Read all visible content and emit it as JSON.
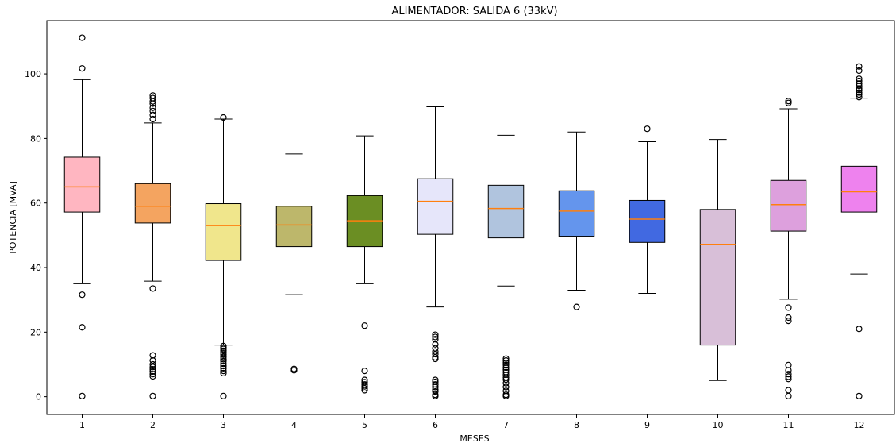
{
  "chart_data": {
    "type": "box",
    "title": "ALIMENTADOR: SALIDA 6 (33kV)",
    "xlabel": "MESES",
    "ylabel": "POTENCIA [MVA]",
    "ylim": [
      -5.5,
      116.5
    ],
    "yticks": [
      0,
      20,
      40,
      60,
      80,
      100
    ],
    "grid": false,
    "categories": [
      "1",
      "2",
      "3",
      "4",
      "5",
      "6",
      "7",
      "8",
      "9",
      "10",
      "11",
      "12"
    ],
    "boxes": [
      {
        "category": "1",
        "whisker_low": 35,
        "q1": 57.2,
        "median": 65,
        "q3": 74.2,
        "whisker_high": 98.2,
        "fliers": [
          111.2,
          101.7,
          31.6,
          21.5,
          0.2
        ],
        "color": "#ffb6c1"
      },
      {
        "category": "2",
        "whisker_low": 35.8,
        "q1": 53.8,
        "median": 59,
        "q3": 66,
        "whisker_high": 84.8,
        "fliers": [
          93.3,
          92.5,
          91.5,
          90.8,
          89.5,
          88.5,
          87.3,
          86,
          33.5,
          12.8,
          11.2,
          10,
          9.2,
          8.5,
          7.8,
          7,
          6.3,
          0.2
        ],
        "color": "#f4a460"
      },
      {
        "category": "3",
        "whisker_low": 16,
        "q1": 42.2,
        "median": 53,
        "q3": 59.8,
        "whisker_high": 86,
        "fliers": [
          86.5,
          15.7,
          15.2,
          14.8,
          14.2,
          13.6,
          13,
          12.3,
          11.6,
          11,
          10.2,
          9.5,
          8.8,
          8,
          7.3,
          0.2
        ],
        "color": "#f0e68c"
      },
      {
        "category": "4",
        "whisker_low": 31.6,
        "q1": 46.5,
        "median": 53.2,
        "q3": 59,
        "whisker_high": 75.2,
        "fliers": [
          8.6,
          8.2
        ],
        "color": "#bdb76b"
      },
      {
        "category": "5",
        "whisker_low": 35,
        "q1": 46.5,
        "median": 54.5,
        "q3": 62.3,
        "whisker_high": 80.8,
        "fliers": [
          22,
          8,
          5.2,
          4.5,
          3.8,
          3.2,
          2.6,
          2
        ],
        "color": "#6b8e23"
      },
      {
        "category": "6",
        "whisker_low": 27.8,
        "q1": 50.3,
        "median": 60.5,
        "q3": 67.5,
        "whisker_high": 89.8,
        "fliers": [
          19.2,
          18.5,
          17.8,
          16.2,
          15,
          14,
          13.2,
          12.2,
          11.7,
          5.2,
          4.6,
          3.8,
          3,
          2.2,
          1.6,
          0.6,
          0.2
        ],
        "color": "#e6e6fa"
      },
      {
        "category": "7",
        "whisker_low": 34.3,
        "q1": 49.2,
        "median": 58.3,
        "q3": 65.5,
        "whisker_high": 81,
        "fliers": [
          11.8,
          11.2,
          10.5,
          9.8,
          9,
          8.3,
          7.6,
          6.8,
          6,
          5.3,
          4.2,
          3,
          1.8,
          0.6,
          0.2
        ],
        "color": "#b0c4de"
      },
      {
        "category": "8",
        "whisker_low": 33,
        "q1": 49.7,
        "median": 57.5,
        "q3": 63.8,
        "whisker_high": 82,
        "fliers": [
          27.8
        ],
        "color": "#6495ed"
      },
      {
        "category": "9",
        "whisker_low": 32,
        "q1": 47.8,
        "median": 55,
        "q3": 60.8,
        "whisker_high": 79,
        "fliers": [
          83
        ],
        "color": "#4169e1"
      },
      {
        "category": "10",
        "whisker_low": 5,
        "q1": 16,
        "median": 47.2,
        "q3": 58,
        "whisker_high": 79.7,
        "fliers": [],
        "color": "#d8bfd8"
      },
      {
        "category": "11",
        "whisker_low": 30.2,
        "q1": 51.3,
        "median": 59.5,
        "q3": 67,
        "whisker_high": 89.2,
        "fliers": [
          91.6,
          91,
          27.6,
          24.5,
          23.5,
          9.8,
          8.2,
          7,
          6.2,
          5.5,
          2,
          0.2
        ],
        "color": "#dda0dd"
      },
      {
        "category": "12",
        "whisker_low": 38,
        "q1": 57.2,
        "median": 63.5,
        "q3": 71.4,
        "whisker_high": 92.5,
        "fliers": [
          102.3,
          101,
          98.5,
          97.8,
          97,
          96.3,
          95.5,
          95,
          94.2,
          93.6,
          92.8,
          21,
          0.2
        ],
        "color": "#ee82ee"
      }
    ],
    "colors": {
      "median": "#ff7f0e",
      "box_edge": "#000000",
      "whisker": "#000000",
      "flier_edge": "#000000"
    }
  }
}
